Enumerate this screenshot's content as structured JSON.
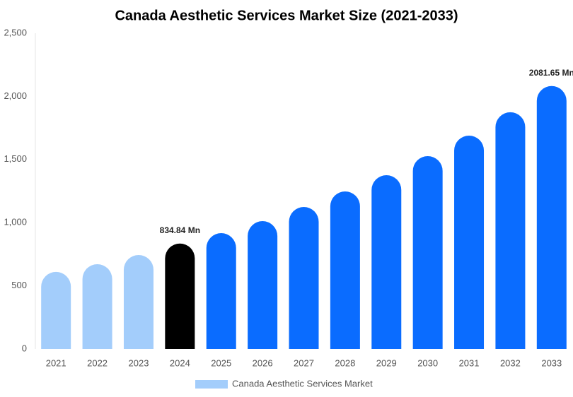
{
  "chart_data": {
    "type": "bar",
    "title": "Canada Aesthetic Services Market Size (2021-2033)",
    "categories": [
      "2021",
      "2022",
      "2023",
      "2024",
      "2025",
      "2026",
      "2027",
      "2028",
      "2029",
      "2030",
      "2031",
      "2032",
      "2033"
    ],
    "series": [
      {
        "name": "Canada Aesthetic Services Market",
        "color": "#a3cdfb",
        "colors": [
          "#a3cdfb",
          "#a3cdfb",
          "#a3cdfb",
          "#000000",
          "#0a6cff",
          "#0a6cff",
          "#0a6cff",
          "#0a6cff",
          "#0a6cff",
          "#0a6cff",
          "#0a6cff",
          "#0a6cff",
          "#0a6cff"
        ],
        "values": [
          610,
          671,
          744,
          834.84,
          917,
          1012,
          1124,
          1247,
          1376,
          1527,
          1689,
          1874,
          2081.65
        ],
        "value_labels": [
          null,
          null,
          null,
          "834.84 Mn",
          null,
          null,
          null,
          null,
          null,
          null,
          null,
          null,
          "2081.65 Mn"
        ]
      }
    ],
    "ylim": [
      0,
      2500
    ],
    "yticks": [
      0,
      500,
      {
        "value": 1000,
        "label": "1,000"
      },
      {
        "value": 1500,
        "label": "1,500"
      },
      {
        "value": 2000,
        "label": "2,000"
      },
      {
        "value": 2500,
        "label": "2,500"
      }
    ],
    "grid": false
  }
}
